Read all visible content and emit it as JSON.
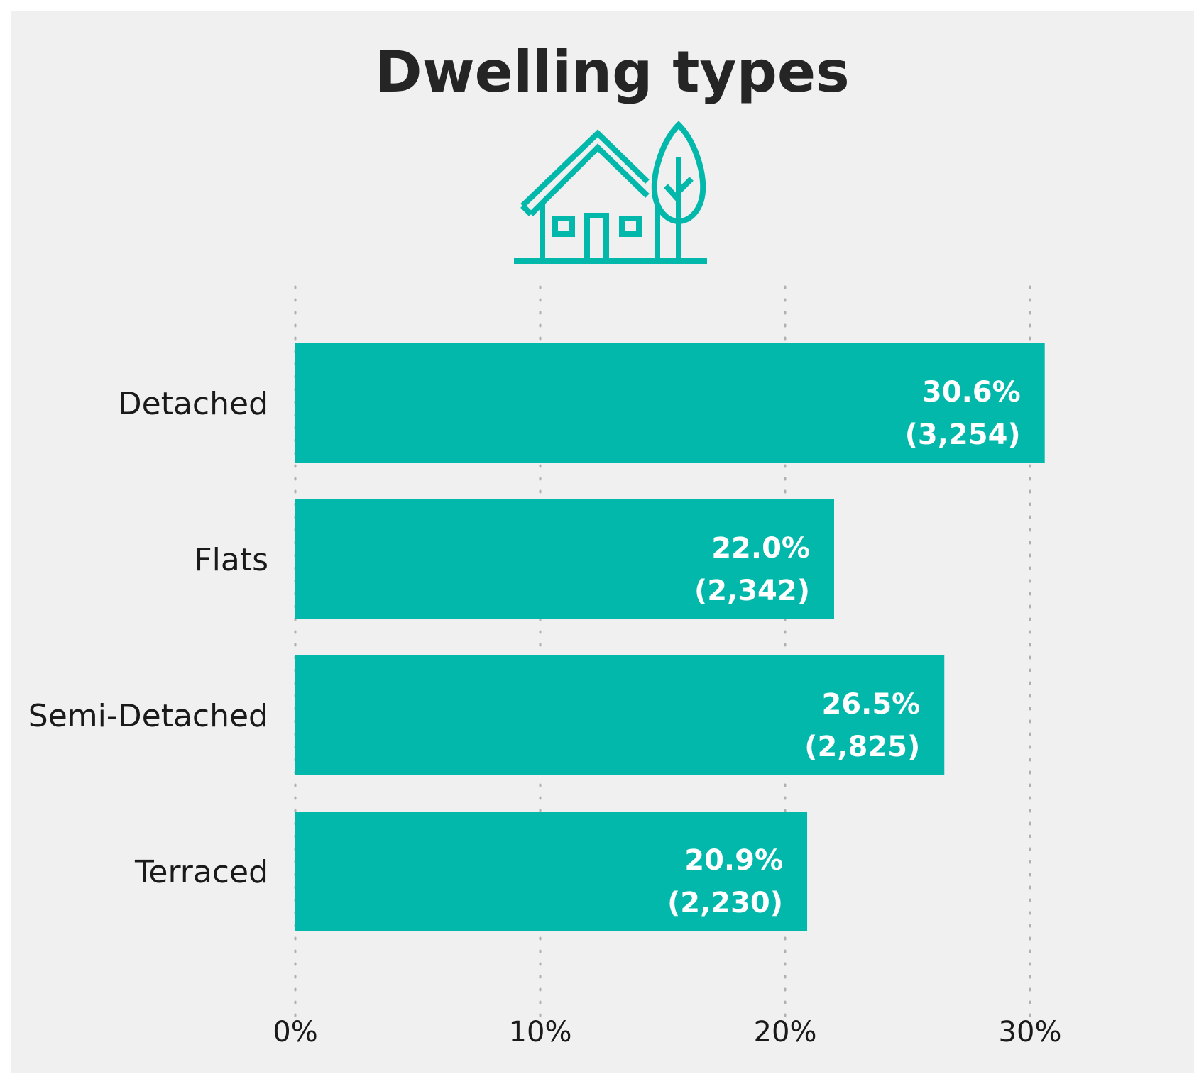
{
  "chart_data": {
    "type": "bar",
    "orientation": "horizontal",
    "title": "Dwelling types",
    "categories": [
      "Detached",
      "Flats",
      "Semi-Detached",
      "Terraced"
    ],
    "values": [
      30.6,
      22.0,
      26.5,
      20.9
    ],
    "value_labels": [
      "30.6%",
      "22.0%",
      "26.5%",
      "20.9%"
    ],
    "count_labels": [
      "(3,254)",
      "(2,342)",
      "(2,825)",
      "(2,230)"
    ],
    "xlim": [
      0,
      30
    ],
    "xticks": [
      0,
      10,
      20,
      30
    ],
    "xtick_labels": [
      "0%",
      "10%",
      "20%",
      "30%"
    ],
    "xlabel": "",
    "ylabel": "",
    "grid": "vertical dotted",
    "legend": "none",
    "colors": {
      "bar": "#02b8ab",
      "background": "#f0f0f0",
      "grid": "#b0b0b0",
      "icon": "#02b8ab"
    }
  },
  "header": {
    "title": "Dwelling types",
    "icon": "house-tree-icon"
  }
}
